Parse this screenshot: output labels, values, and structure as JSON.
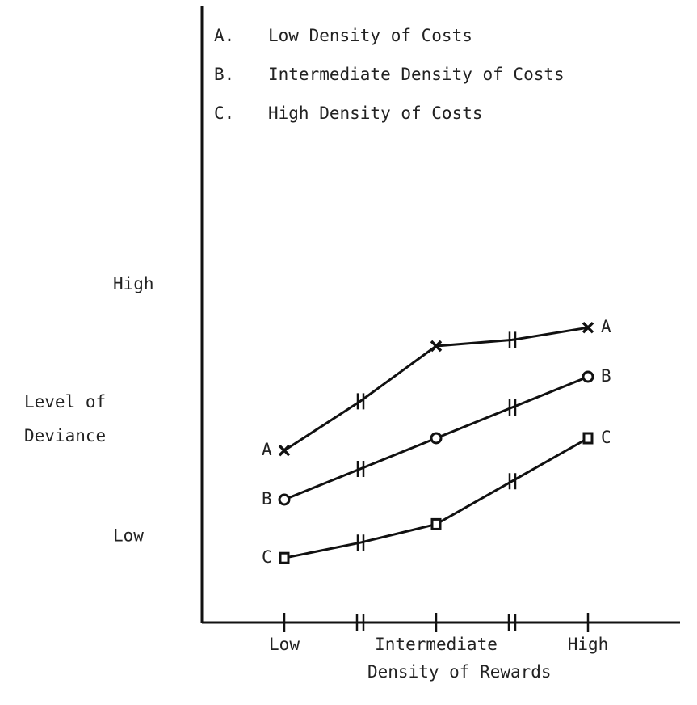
{
  "chart_data": {
    "type": "line",
    "xlabel": "Density of Rewards",
    "ylabel": [
      "Level of",
      "Deviance"
    ],
    "categories": [
      "Low",
      null,
      "Intermediate",
      null,
      "High"
    ],
    "ylim": [
      0,
      100
    ],
    "yticks": [
      {
        "value": 55,
        "label": "High"
      },
      {
        "value": 14,
        "label": "Low"
      }
    ],
    "grid": false,
    "series": [
      {
        "name": "Low Density of Costs",
        "legend_key": "A.",
        "label": "A",
        "marker": "x",
        "color": "#111111",
        "values": [
          28,
          36,
          45,
          46,
          48
        ]
      },
      {
        "name": "Intermediate Density of Costs",
        "legend_key": "B.",
        "label": "B",
        "marker": "o",
        "color": "#111111",
        "values": [
          20,
          25,
          30,
          35,
          40
        ]
      },
      {
        "name": "High Density of Costs",
        "legend_key": "C.",
        "label": "C",
        "marker": "square",
        "color": "#111111",
        "values": [
          10.5,
          13,
          16,
          23,
          30
        ]
      }
    ]
  }
}
